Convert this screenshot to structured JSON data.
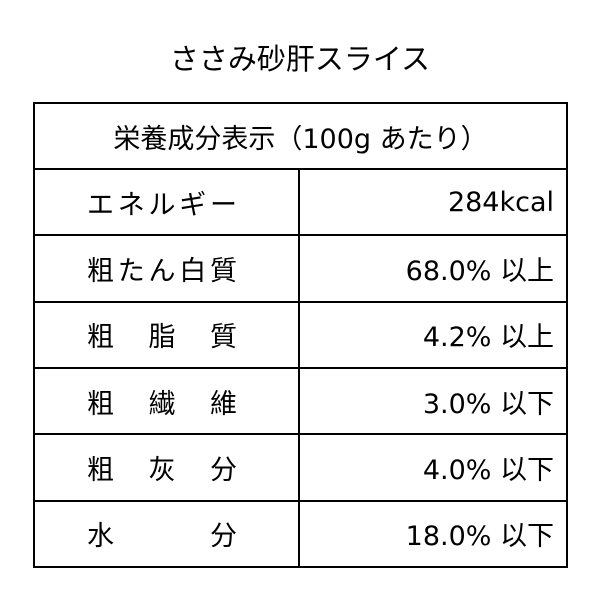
{
  "title": "ささみ砂肝スライス",
  "table": {
    "header": "栄養成分表示（100g あたり）",
    "rows": [
      {
        "label": "エネルギー",
        "value": "284kcal"
      },
      {
        "label": "粗たん白質",
        "value": "68.0% 以上"
      },
      {
        "label": "粗脂質",
        "value": "4.2% 以上"
      },
      {
        "label": "粗繊維",
        "value": "3.0% 以下"
      },
      {
        "label": "粗灰分",
        "value": "4.0% 以下"
      },
      {
        "label": "水分",
        "value": "18.0% 以下"
      }
    ]
  }
}
